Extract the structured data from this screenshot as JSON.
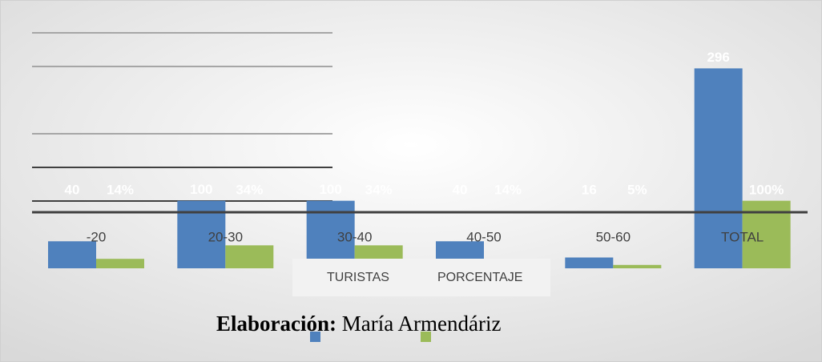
{
  "chart_data": {
    "type": "bar",
    "categories": [
      "-20",
      "20-30",
      "30-40",
      "40-50",
      "50-60",
      "TOTAL"
    ],
    "series": [
      {
        "name": "TURISTAS",
        "color": "#4f81bd",
        "values": [
          40,
          100,
          100,
          40,
          16,
          296
        ]
      },
      {
        "name": "PORCENTAJE",
        "color": "#9bbb59",
        "values": [
          14,
          34,
          34,
          14,
          5,
          100
        ],
        "value_labels": [
          "14%",
          "34%",
          "34%",
          "14%",
          "5%",
          "100%"
        ]
      }
    ],
    "ylim": [
      0,
      300
    ],
    "caption": {
      "bold": "Elaboración:",
      "text": "María Armendáriz"
    }
  }
}
